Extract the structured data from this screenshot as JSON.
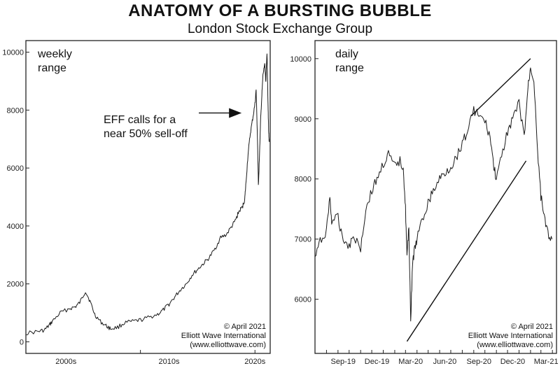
{
  "header": {
    "title": "ANATOMY OF A BURSTING BUBBLE",
    "subtitle": "London Stock Exchange Group"
  },
  "chart_data": [
    {
      "type": "line",
      "panel": "left",
      "note": "weekly range",
      "ylim": [
        -400,
        10400
      ],
      "yticks": [
        0,
        2000,
        4000,
        6000,
        8000,
        10000
      ],
      "xlim": [
        2000.0,
        2021.33
      ],
      "xtick_labels": [
        {
          "label": "2000s",
          "x": 2003.5
        },
        {
          "label": "2010s",
          "x": 2012.5
        },
        {
          "label": "2020s",
          "x": 2020.0
        }
      ],
      "series": [
        {
          "x": [
            2000.0,
            2001.0,
            2001.6,
            2002.0,
            2002.3,
            2003.0,
            2003.8,
            2004.3,
            2004.7,
            2005.2,
            2005.6,
            2006.0,
            2006.5,
            2007.0,
            2007.4,
            2008.0,
            2008.6,
            2009.3,
            2010.0,
            2010.8,
            2011.5,
            2012.0,
            2012.5,
            2013.0,
            2013.5,
            2014.0,
            2014.5,
            2015.0,
            2015.5,
            2016.0,
            2016.5,
            2017.0,
            2017.5,
            2018.0,
            2018.3,
            2018.6,
            2018.9,
            2019.1,
            2019.2,
            2019.4,
            2019.6,
            2019.8,
            2020.0,
            2020.1,
            2020.2,
            2020.3,
            2020.4,
            2020.5,
            2020.6,
            2020.7,
            2020.85,
            2020.95,
            2021.05,
            2021.1,
            2021.15,
            2021.2,
            2021.25
          ],
          "y": [
            300,
            350,
            400,
            550,
            700,
            1000,
            1150,
            1200,
            1350,
            1750,
            1400,
            950,
            700,
            550,
            450,
            500,
            650,
            700,
            750,
            850,
            950,
            1100,
            1300,
            1550,
            1800,
            2000,
            2300,
            2500,
            2700,
            2900,
            3200,
            3600,
            3700,
            4000,
            4200,
            4500,
            4650,
            4900,
            5400,
            6500,
            7200,
            7700,
            8200,
            8700,
            7300,
            5400,
            6500,
            7700,
            8500,
            9200,
            9600,
            9000,
            10000,
            9100,
            8000,
            7200,
            6900
          ]
        }
      ],
      "annotation": {
        "lines": [
          "EFF calls for a",
          "near 50% sell-off"
        ],
        "arrow_to": {
          "x": 2019.2,
          "y": 7900
        }
      },
      "credit": [
        "© April 2021",
        "Elliott Wave International",
        "(www.elliottwave.com)"
      ]
    },
    {
      "type": "line",
      "panel": "right",
      "note": "daily range",
      "ylim": [
        5100,
        10300
      ],
      "yticks": [
        6000,
        7000,
        8000,
        9000,
        10000
      ],
      "xtick_labels": [
        "Sep-19",
        "Dec-19",
        "Mar-20",
        "Jun-20",
        "Sep-20",
        "Dec-20",
        "Mar-21"
      ],
      "series": [
        {
          "x": [
            "2019-07-01",
            "2019-07-15",
            "2019-08-01",
            "2019-08-10",
            "2019-08-15",
            "2019-09-01",
            "2019-09-15",
            "2019-10-01",
            "2019-10-15",
            "2019-11-01",
            "2019-11-15",
            "2019-12-01",
            "2019-12-15",
            "2020-01-01",
            "2020-01-15",
            "2020-02-01",
            "2020-02-15",
            "2020-02-24",
            "2020-03-01",
            "2020-03-05",
            "2020-03-10",
            "2020-03-15",
            "2020-03-20",
            "2020-03-25",
            "2020-04-01",
            "2020-04-15",
            "2020-05-01",
            "2020-05-15",
            "2020-06-01",
            "2020-06-15",
            "2020-07-01",
            "2020-07-15",
            "2020-08-01",
            "2020-08-15",
            "2020-09-01",
            "2020-09-15",
            "2020-10-01",
            "2020-10-15",
            "2020-10-25",
            "2020-11-01",
            "2020-11-15",
            "2020-12-01",
            "2020-12-15",
            "2021-01-01",
            "2021-01-15",
            "2021-01-25",
            "2021-02-01",
            "2021-02-10",
            "2021-02-20",
            "2021-03-01",
            "2021-03-10",
            "2021-03-20",
            "2021-03-31"
          ],
          "y": [
            6700,
            6950,
            7150,
            7700,
            7300,
            7350,
            7000,
            6900,
            7050,
            6850,
            7500,
            7800,
            8000,
            8250,
            8400,
            8200,
            8300,
            8200,
            7500,
            6700,
            7200,
            5650,
            6600,
            6800,
            7000,
            7300,
            7600,
            7800,
            8000,
            8100,
            8200,
            8350,
            8600,
            8800,
            9150,
            9050,
            8950,
            8700,
            8200,
            8000,
            8350,
            8800,
            9000,
            9250,
            8700,
            9500,
            9850,
            9650,
            8500,
            7700,
            7400,
            7100,
            7000
          ]
        }
      ],
      "trendlines": [
        {
          "from": {
            "x": "2020-03-05",
            "y": 5300
          },
          "to": {
            "x": "2021-01-20",
            "y": 8300
          }
        },
        {
          "from": {
            "x": "2020-08-25",
            "y": 9050
          },
          "to": {
            "x": "2021-02-01",
            "y": 10000
          }
        }
      ],
      "credit": [
        "© April 2021",
        "Elliott Wave International",
        "(www.elliottwave.com)"
      ]
    }
  ]
}
